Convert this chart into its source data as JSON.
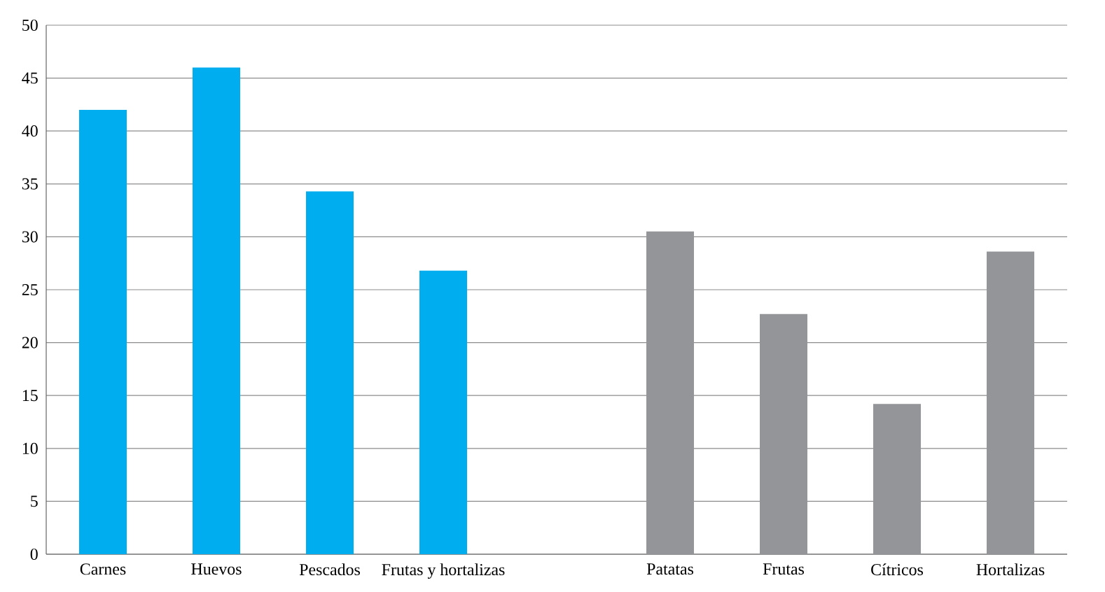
{
  "chart_data": {
    "type": "bar",
    "categories": [
      "Carnes",
      "Huevos",
      "Pescados",
      "Frutas y hortalizas",
      null,
      "Patatas",
      "Frutas",
      "Cítricos",
      "Hortalizas"
    ],
    "values": [
      42,
      46,
      34.3,
      26.8,
      null,
      30.5,
      22.7,
      14.2,
      28.6
    ],
    "colors": [
      "#00aeef",
      "#00aeef",
      "#00aeef",
      "#00aeef",
      null,
      "#939598",
      "#939598",
      "#939598",
      "#939598"
    ],
    "ylim": [
      0,
      50
    ],
    "yticks": [
      0,
      5,
      10,
      15,
      20,
      25,
      30,
      35,
      40,
      45,
      50
    ],
    "grid": "y"
  }
}
